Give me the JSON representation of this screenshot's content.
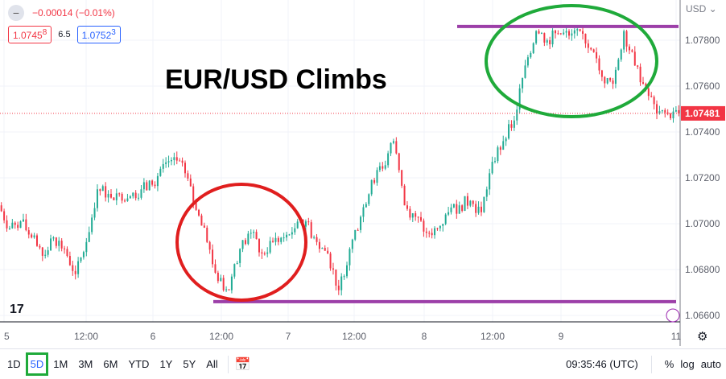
{
  "header": {
    "change": "−0.00014 (−0.01%)",
    "bid": "1.0745",
    "bid_sup": "8",
    "spread": "6.5",
    "ask": "1.0752",
    "ask_sup": "3",
    "currency": "USD ⌄"
  },
  "annotation_title": "EUR/USD Climbs",
  "chart_data": {
    "type": "candlestick",
    "closes": [
      1.0708,
      1.0698,
      1.0701,
      1.0694,
      1.0686,
      1.0694,
      1.0689,
      1.0678,
      1.0692,
      1.0715,
      1.0713,
      1.0713,
      1.0712,
      1.0715,
      1.0717,
      1.0726,
      1.0729,
      1.0722,
      1.0706,
      1.0692,
      1.0675,
      1.0671,
      1.0689,
      1.0696,
      1.0687,
      1.0692,
      1.0694,
      1.0698,
      1.0701,
      1.0692,
      1.0687,
      1.0671,
      1.0689,
      1.0703,
      1.0719,
      1.0724,
      1.0736,
      1.0708,
      1.0703,
      1.0696,
      1.0698,
      1.0705,
      1.0708,
      1.071,
      1.0705,
      1.0727,
      1.0736,
      1.0745,
      1.0769,
      1.0784,
      1.078,
      1.0783,
      1.0782,
      1.0784,
      1.0776,
      1.0764,
      1.0761,
      1.0784,
      1.0769,
      1.0759,
      1.0748,
      1.0748,
      1.07481
    ],
    "ylim": [
      1.0655,
      1.0798
    ],
    "y_ticks": [
      "1.07800",
      "1.07600",
      "1.07400",
      "1.07200",
      "1.07000",
      "1.06800",
      "1.06600"
    ],
    "y_tick_values": [
      1.078,
      1.076,
      1.074,
      1.072,
      1.07,
      1.068,
      1.066
    ],
    "x_ticks": [
      "5",
      "12:00",
      "6",
      "12:00",
      "7",
      "12:00",
      "8",
      "12:00",
      "9",
      "11"
    ],
    "last_price": "1.07481",
    "resistance_level": 1.0786,
    "support_level": 1.0666,
    "colors": {
      "up": "#22ab94",
      "down": "#f23645",
      "resistance": "#9c3fa8",
      "support": "#9c3fa8",
      "red_circle": "#e01e1e",
      "green_circle": "#1faa3a",
      "last_price": "#f23645"
    },
    "grid": true
  },
  "toolbar": {
    "ranges": [
      "1D",
      "5D",
      "1M",
      "3M",
      "6M",
      "YTD",
      "1Y",
      "5Y",
      "All"
    ],
    "active": "5D",
    "time": "09:35:46 (UTC)",
    "percent": "%",
    "log": "log",
    "auto": "auto"
  }
}
